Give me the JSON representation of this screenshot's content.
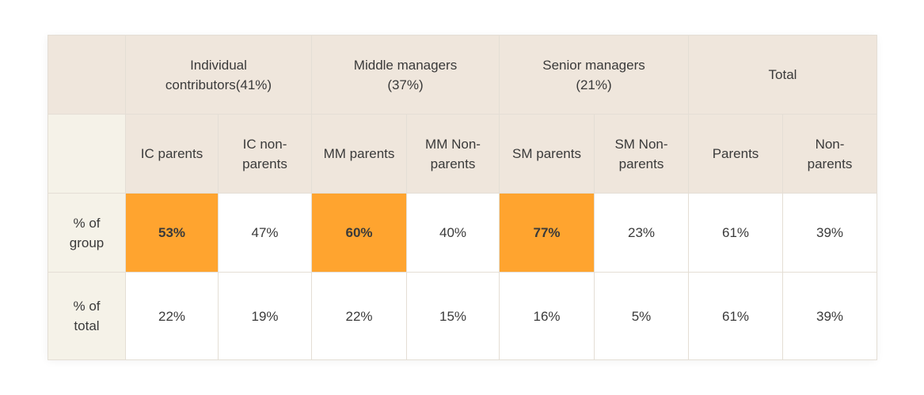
{
  "chart_data": {
    "type": "table",
    "group_headers": [
      "Individual contributors(41%)",
      "Middle managers (37%)",
      "Senior managers (21%)",
      "Total"
    ],
    "column_headers": [
      "IC parents",
      "IC non-parents",
      "MM parents",
      "MM Non-parents",
      "SM parents",
      "SM Non-parents",
      "Parents",
      "Non-parents"
    ],
    "rows": [
      {
        "label": "% of group",
        "values": [
          "53%",
          "47%",
          "60%",
          "40%",
          "77%",
          "23%",
          "61%",
          "39%"
        ],
        "highlighted": [
          true,
          false,
          true,
          false,
          true,
          false,
          false,
          false
        ]
      },
      {
        "label": "% of total",
        "values": [
          "22%",
          "19%",
          "22%",
          "15%",
          "16%",
          "5%",
          "61%",
          "39%"
        ],
        "highlighted": [
          false,
          false,
          false,
          false,
          false,
          false,
          false,
          false
        ]
      }
    ],
    "colors": {
      "header_bg": "#efe6dc",
      "row_label_bg": "#f5f2e8",
      "highlight": "#ffa42f",
      "border": "#e4ded5"
    }
  }
}
